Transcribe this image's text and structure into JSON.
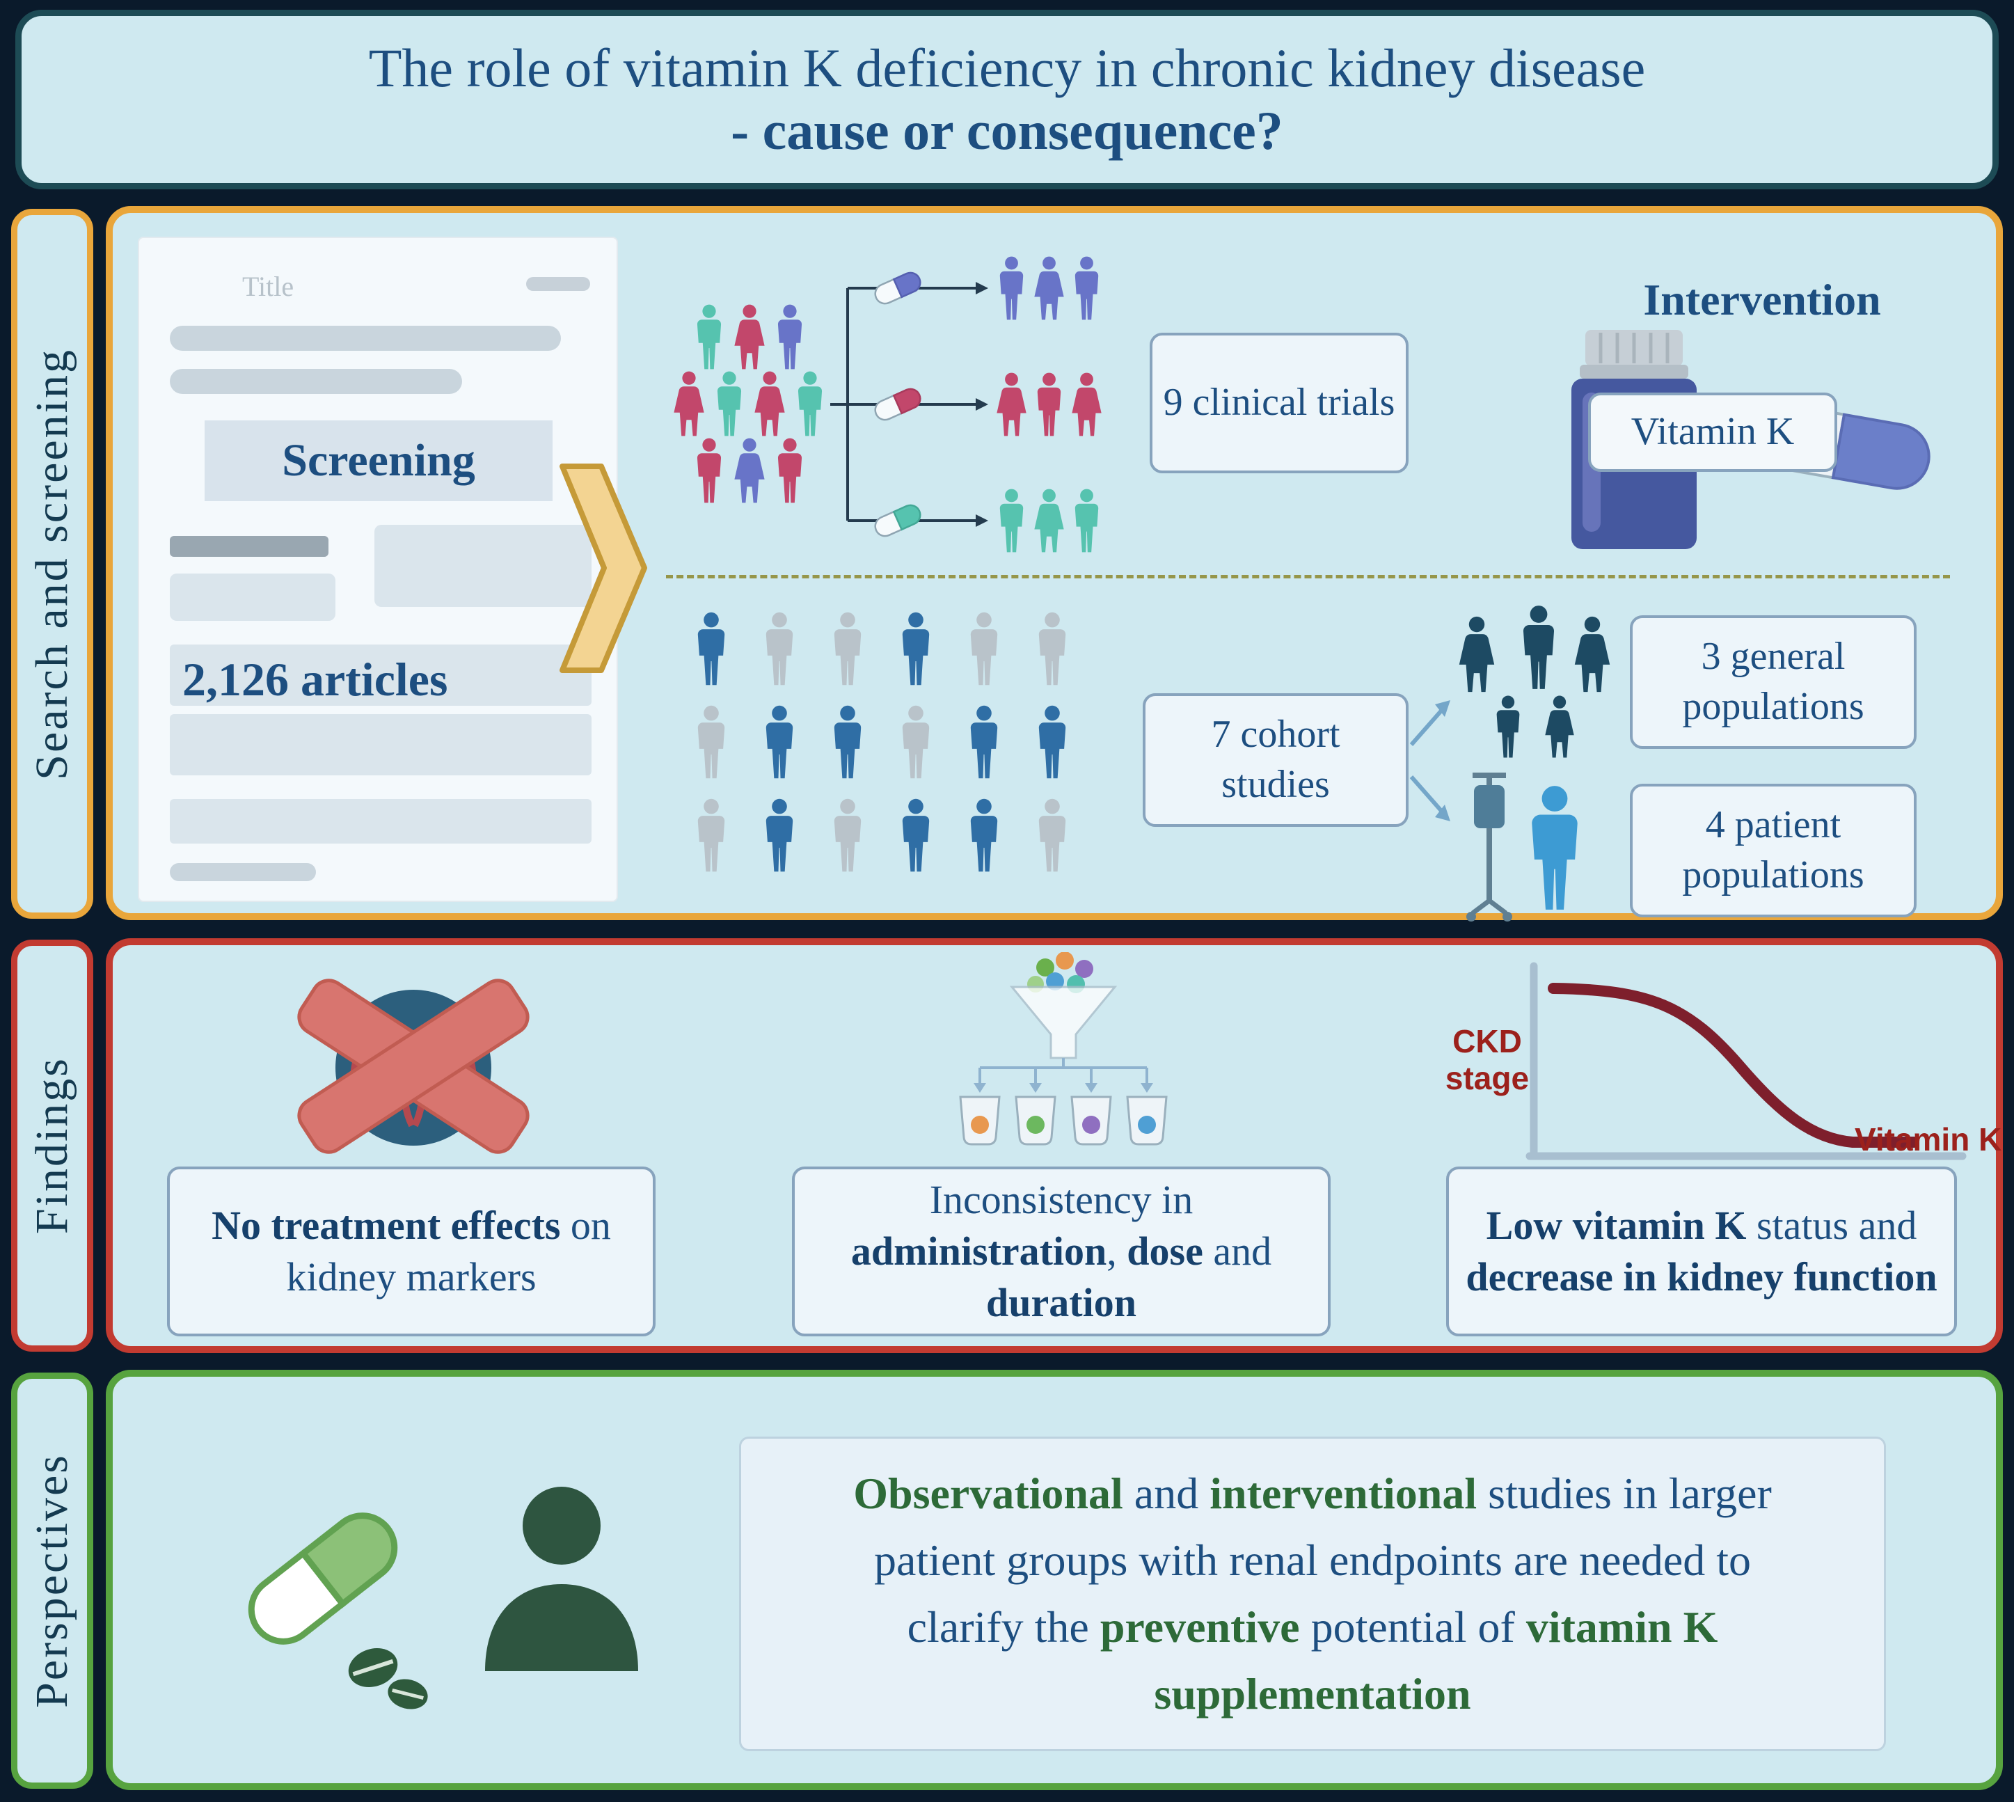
{
  "title": {
    "line1": "The role of vitamin K deficiency in chronic kidney disease",
    "line2": "- cause or consequence?"
  },
  "sections": {
    "search": {
      "label": "Search and screening",
      "document": {
        "title_placeholder": "Title",
        "screening": "Screening",
        "articles": "2,126 articles"
      },
      "trials_box": "9 clinical trials",
      "intervention": {
        "heading": "Intervention",
        "pill_label": "Vitamin K"
      },
      "cohort_box": "7 cohort studies",
      "general_box": "3 general populations",
      "patient_box": "4 patient populations"
    },
    "findings": {
      "label": "Findings",
      "cards": [
        {
          "segments": [
            {
              "t": "No treatment effects",
              "b": true
            },
            {
              "t": " on kidney markers",
              "b": false
            }
          ]
        },
        {
          "segments": [
            {
              "t": "Inconsistency in ",
              "b": false
            },
            {
              "t": "administration",
              "b": true
            },
            {
              "t": ", ",
              "b": false
            },
            {
              "t": "dose",
              "b": true
            },
            {
              "t": " and ",
              "b": false
            },
            {
              "t": "duration",
              "b": true
            }
          ]
        },
        {
          "segments": [
            {
              "t": "Low vitamin K",
              "b": true
            },
            {
              "t": " status and ",
              "b": false
            },
            {
              "t": "decrease in kidney function",
              "b": true
            }
          ]
        }
      ],
      "graph": {
        "y_label": "CKD stage",
        "x_label": "Vitamin K"
      }
    },
    "perspectives": {
      "label": "Perspectives",
      "segments": [
        {
          "t": "Observational",
          "b": true
        },
        {
          "t": " and ",
          "b": false
        },
        {
          "t": "interventional",
          "b": true
        },
        {
          "t": " studies in larger patient groups with renal endpoints are needed to clarify the ",
          "b": false
        },
        {
          "t": "preventive",
          "b": true
        },
        {
          "t": " potential of ",
          "b": false
        },
        {
          "t": "vitamin K supplementation",
          "b": true
        }
      ]
    }
  },
  "colors": {
    "background": "#0a1a2b",
    "panel_bg": "#cfe9f0",
    "box_bg": "#edf5fa",
    "box_border": "#87a3bd",
    "title_border": "#1d4b55",
    "search_border": "#e9a63b",
    "findings_border": "#c23b31",
    "perspectives_border": "#57a33f",
    "text_primary": "#1d4e80",
    "text_bold": "#16406b",
    "green_text": "#2d6a38",
    "graph_red": "#7e1f2c",
    "label_red": "#9c211c"
  },
  "icons": {
    "chevron-right-icon": "gold chevron arrow",
    "participants-cluster-icon": "mixed color people pictograms",
    "pill-icon": "two-tone capsule",
    "medicine-bottle-icon": "blue pill bottle with capsule",
    "cohort-people-grid": "blue and gray people pictograms",
    "family-icon": "dark navy family group",
    "patient-iv-icon": "patient with IV pole",
    "kidney-crossed-icon": "kidneys with red X",
    "funnel-beakers-icon": "funnel sorting into beakers",
    "decline-graph-icon": "declining curve graph",
    "green-capsule-icon": "green capsule with tablets",
    "person-silhouette-icon": "dark green person silhouette"
  }
}
